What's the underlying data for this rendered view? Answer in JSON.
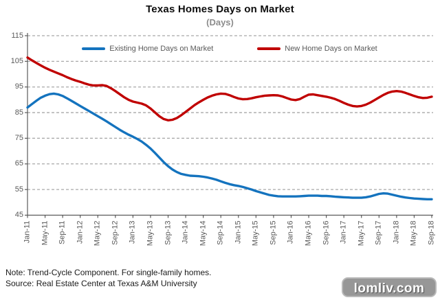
{
  "title": "Texas Homes Days on Market",
  "subtitle": "(Days)",
  "legend": [
    {
      "label": "Existing Home Days on Market",
      "color": "#1473BE"
    },
    {
      "label": "New Home Days on Market",
      "color": "#C00000"
    }
  ],
  "notes": [
    "Note: Trend-Cycle Component. For single-family homes.",
    "Source: Real Estate Center at Texas A&M University"
  ],
  "watermark": "lomliv.com",
  "colors": {
    "existing_line": "#1473BE",
    "new_line": "#C00000",
    "gridline": "#A8A8A8",
    "axis": "#595959",
    "tick_text": "#595959",
    "subtitle_text": "#8C8C8C"
  },
  "chart_data": {
    "type": "line",
    "title": "Texas Homes Days on Market",
    "subtitle": "(Days)",
    "xlabel": "",
    "ylabel": "",
    "ylim": [
      45,
      115
    ],
    "yticks": [
      45,
      55,
      65,
      75,
      85,
      95,
      105,
      115
    ],
    "grid": "horizontal-dashed",
    "legend_position": "top-inside",
    "x_frequency": "monthly",
    "x_start": "Jan-11",
    "x_end": "Sep-18",
    "x_tick_labels": [
      "Jan-11",
      "May-11",
      "Sep-11",
      "Jan-12",
      "May-12",
      "Sep-12",
      "Jan-13",
      "May-13",
      "Sep-13",
      "Jan-14",
      "May-14",
      "Sep-14",
      "Jan-15",
      "May-15",
      "Sep-15",
      "Jan-16",
      "May-16",
      "Sep-16",
      "Jan-17",
      "May-17",
      "Sep-17",
      "Jan-18",
      "May-18",
      "Sep-18"
    ],
    "x_tick_every_n_months": 4,
    "series": [
      {
        "name": "Existing Home Days on Market",
        "color": "#1473BE",
        "values": [
          87.0,
          88.3,
          89.6,
          90.8,
          91.6,
          92.2,
          92.4,
          92.1,
          91.5,
          90.6,
          89.6,
          88.6,
          87.6,
          86.6,
          85.6,
          84.6,
          83.6,
          82.6,
          81.6,
          80.5,
          79.4,
          78.3,
          77.3,
          76.4,
          75.6,
          74.7,
          73.7,
          72.4,
          71.0,
          69.3,
          67.5,
          65.7,
          64.1,
          62.8,
          61.8,
          61.1,
          60.7,
          60.4,
          60.3,
          60.2,
          60.0,
          59.7,
          59.3,
          58.8,
          58.2,
          57.6,
          57.1,
          56.7,
          56.4,
          56.0,
          55.5,
          55.0,
          54.4,
          53.9,
          53.4,
          52.9,
          52.6,
          52.4,
          52.3,
          52.3,
          52.3,
          52.3,
          52.4,
          52.5,
          52.6,
          52.6,
          52.6,
          52.5,
          52.5,
          52.4,
          52.2,
          52.1,
          52.0,
          51.9,
          51.8,
          51.8,
          51.8,
          52.0,
          52.3,
          52.8,
          53.3,
          53.5,
          53.4,
          53.0,
          52.6,
          52.2,
          51.9,
          51.7,
          51.5,
          51.4,
          51.3,
          51.2,
          51.2
        ]
      },
      {
        "name": "New Home Days on Market",
        "color": "#C00000",
        "values": [
          106.5,
          105.4,
          104.4,
          103.4,
          102.5,
          101.7,
          101.0,
          100.3,
          99.6,
          98.8,
          98.1,
          97.5,
          97.0,
          96.4,
          95.9,
          95.6,
          95.6,
          95.7,
          95.4,
          94.5,
          93.4,
          92.2,
          91.0,
          90.0,
          89.3,
          88.9,
          88.5,
          87.8,
          86.6,
          85.1,
          83.6,
          82.5,
          82.0,
          82.2,
          82.9,
          84.0,
          85.3,
          86.6,
          87.9,
          89.0,
          90.0,
          90.9,
          91.6,
          92.1,
          92.4,
          92.3,
          91.8,
          91.1,
          90.5,
          90.2,
          90.3,
          90.6,
          91.0,
          91.3,
          91.6,
          91.7,
          91.8,
          91.7,
          91.3,
          90.7,
          90.1,
          89.9,
          90.3,
          91.2,
          92.0,
          92.1,
          91.8,
          91.5,
          91.2,
          90.8,
          90.3,
          89.6,
          88.8,
          88.1,
          87.6,
          87.4,
          87.6,
          88.1,
          88.9,
          89.9,
          90.9,
          91.9,
          92.7,
          93.2,
          93.4,
          93.2,
          92.7,
          92.1,
          91.5,
          91.0,
          90.7,
          90.8,
          91.2
        ]
      }
    ]
  }
}
